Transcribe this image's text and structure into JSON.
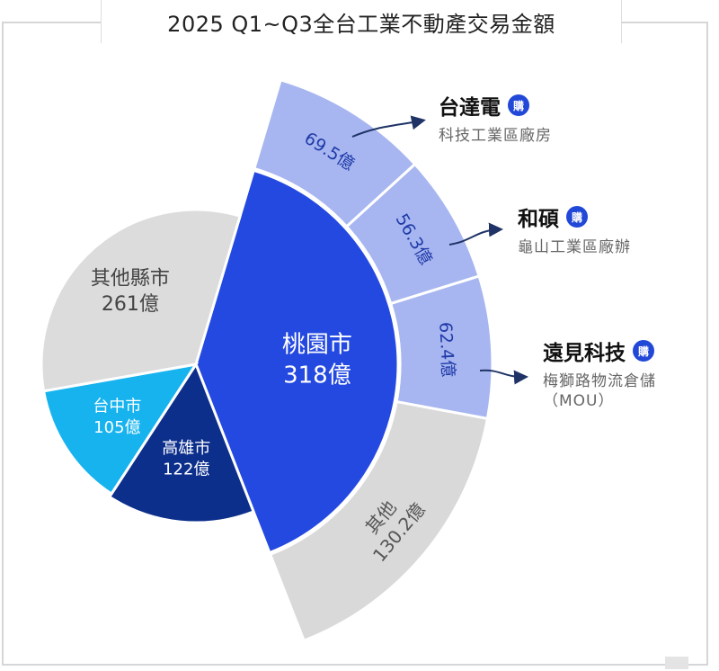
{
  "chart_data": {
    "type": "pie",
    "subtype": "pie-of-pie sunburst",
    "title": "2025 Q1~Q3全台工業不動產交易金額",
    "unit": "億",
    "slices": [
      {
        "name": "桃園市",
        "value": 318,
        "label": "318億",
        "color": "#2449e0"
      },
      {
        "name": "高雄市",
        "value": 122,
        "label": "122億",
        "color": "#0d2f8c"
      },
      {
        "name": "台中市",
        "value": 105,
        "label": "105億",
        "color": "#17b3ef"
      },
      {
        "name": "其他縣市",
        "value": 261,
        "label": "261億",
        "color": "#dcdcdc"
      }
    ],
    "breakdown_of": "桃園市",
    "breakdown": [
      {
        "name": "台達電",
        "value": 69.5,
        "label": "69.5億",
        "color": "#a7b6f0"
      },
      {
        "name": "和碩",
        "value": 56.3,
        "label": "56.3億",
        "color": "#a7b6f0"
      },
      {
        "name": "遠見科技",
        "value": 62.4,
        "label": "62.4億",
        "color": "#a7b6f0"
      },
      {
        "name": "其他",
        "value": 130.2,
        "label": "130.2億",
        "color": "#d9d9d9"
      }
    ]
  },
  "annotations": [
    {
      "name": "台達電",
      "badge": "購",
      "desc": "科技工業區廠房"
    },
    {
      "name": "和碩",
      "badge": "購",
      "desc": "龜山工業區廠辦"
    },
    {
      "name": "遠見科技",
      "badge": "購",
      "desc": "梅獅路物流倉儲",
      "note": "（MOU）"
    }
  ]
}
